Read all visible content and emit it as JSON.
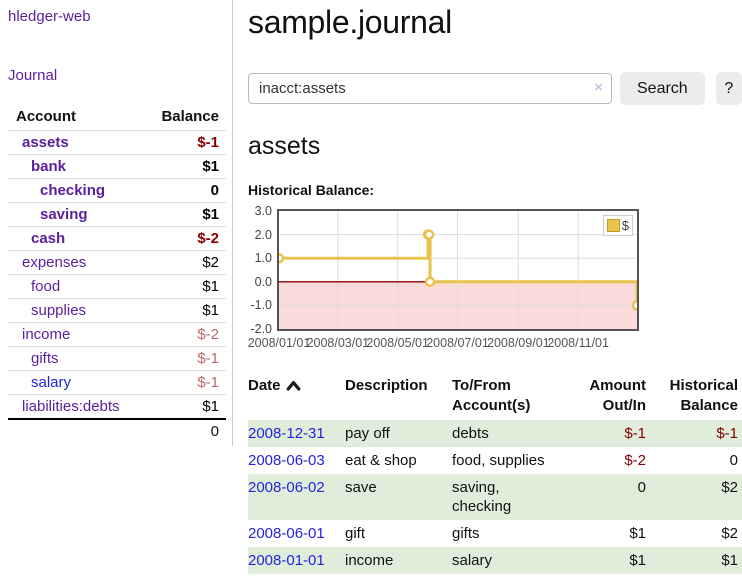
{
  "colors": {
    "link_purple": "#5b1f9c",
    "link_blue": "#2424dd",
    "negative_red": "#8b0000",
    "negative_rose": "#bb6a6a",
    "row_green": "#e0edda",
    "chart_gold": "#e9c34b",
    "chart_negative_pink": "#fbdada",
    "zero_line_red": "#8b0000",
    "button_gray": "#ececec"
  },
  "sidebar": {
    "app_title": "hledger-web",
    "journal_link": "Journal",
    "accounts_header": {
      "account": "Account",
      "balance": "Balance"
    },
    "rows": [
      {
        "name": "assets",
        "balance": "$-1"
      },
      {
        "name": "bank",
        "balance": "$1"
      },
      {
        "name": "checking",
        "balance": "0"
      },
      {
        "name": "saving",
        "balance": "$1"
      },
      {
        "name": "cash",
        "balance": "$-2"
      },
      {
        "name": "expenses",
        "balance": "$2"
      },
      {
        "name": "food",
        "balance": "$1"
      },
      {
        "name": "supplies",
        "balance": "$1"
      },
      {
        "name": "income",
        "balance": "$-2"
      },
      {
        "name": "gifts",
        "balance": "$-1"
      },
      {
        "name": "salary",
        "balance": "$-1"
      },
      {
        "name": "liabilities:debts",
        "balance": "$1"
      }
    ],
    "total": "0"
  },
  "header": {
    "title": "sample.journal"
  },
  "search": {
    "query": "inacct:assets",
    "clear_icon": "×",
    "button_label": "Search",
    "help_label": "?"
  },
  "register": {
    "heading": "assets",
    "chart_title": "Historical Balance:",
    "table": {
      "headers": {
        "date": "Date",
        "description": "Description",
        "account": "To/From Account(s)",
        "amount": "Amount Out/In",
        "balance": "Historical Balance"
      },
      "rows": [
        {
          "date": "2008-12-31",
          "description": "pay off",
          "account": "debts",
          "amount": "$-1",
          "balance": "$-1"
        },
        {
          "date": "2008-06-03",
          "description": "eat & shop",
          "account": "food, supplies",
          "amount": "$-2",
          "balance": "0"
        },
        {
          "date": "2008-06-02",
          "description": "save",
          "account": "saving,\nchecking",
          "amount": "0",
          "balance": "$2"
        },
        {
          "date": "2008-06-01",
          "description": "gift",
          "account": "gifts",
          "amount": "$1",
          "balance": "$2"
        },
        {
          "date": "2008-01-01",
          "description": "income",
          "account": "salary",
          "amount": "$1",
          "balance": "$1"
        }
      ]
    }
  },
  "chart_data": {
    "type": "line",
    "style": "steps",
    "title": "Historical Balance:",
    "legend": "$",
    "legend_position": "top-right",
    "grid": true,
    "x_range": [
      "2008-01-01",
      "2008-12-31"
    ],
    "ylim": [
      -2,
      3
    ],
    "yticks": [
      3,
      2,
      1,
      0,
      -1,
      -2
    ],
    "ytick_labels": [
      "3.0",
      "2.0",
      "1.0",
      "0.0",
      "-1.0",
      "-2.0"
    ],
    "xtick_labels": [
      "2008/01/01",
      "2008/03/01",
      "2008/05/01",
      "2008/07/01",
      "2008/09/01",
      "2008/11/01"
    ],
    "series": [
      {
        "name": "$",
        "color": "#e9c34b",
        "points": [
          [
            "2008-01-01",
            1
          ],
          [
            "2008-06-01",
            2
          ],
          [
            "2008-06-02",
            2
          ],
          [
            "2008-06-03",
            0
          ],
          [
            "2008-12-31",
            -1
          ]
        ]
      }
    ],
    "negative_region_color": "#fbdada",
    "zero_line_color": "#8b0000"
  }
}
